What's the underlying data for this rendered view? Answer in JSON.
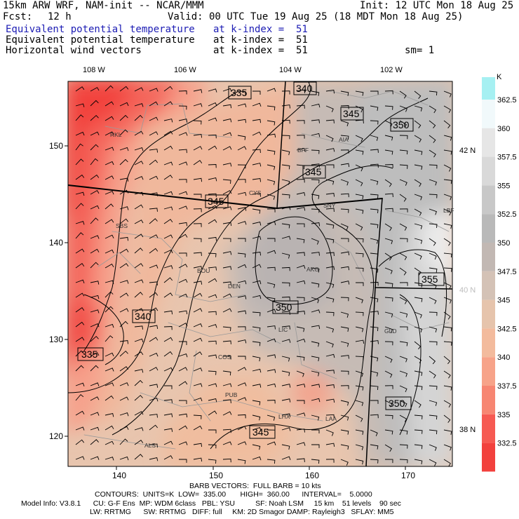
{
  "header": {
    "model": "15km ARW WRF, NAM-init -- NCAR/MMM",
    "init": "Init: 12 UTC Mon 18 Aug 25",
    "fcst_label": "Fcst:",
    "fcst_value": "12 h",
    "valid": "Valid: 00 UTC Tue 19 Aug 25 (18 MDT Mon 18 Aug 25)",
    "fields": [
      {
        "name": "Equivalent potential temperature",
        "level": "at k-index =  51",
        "highlight": true
      },
      {
        "name": "Equivalent potential temperature",
        "level": "at k-index =  51",
        "highlight": false
      },
      {
        "name": "Horizontal wind vectors",
        "level": "at k-index =  51",
        "highlight": false
      }
    ],
    "smoothing": "sm= 1"
  },
  "map": {
    "top_lon_labels": [
      "108 W",
      "106 W",
      "104 W",
      "102 W"
    ],
    "bottom_ticks": [
      "140",
      "150",
      "160",
      "170"
    ],
    "left_ticks": [
      "150",
      "140",
      "130",
      "120"
    ],
    "right_lat_labels": [
      "42 N",
      "40 N",
      "38 N"
    ],
    "stations": [
      "RKL",
      "BFF",
      "AIA",
      "CYS",
      "SNY",
      "SBS",
      "BOU",
      "DEN",
      "AKO",
      "LIC",
      "GLD",
      "COS",
      "PUB",
      "LHX",
      "LAA",
      "ALS",
      "LBF"
    ],
    "contour_labels": [
      "335",
      "340",
      "345",
      "350",
      "345",
      "345",
      "340",
      "335",
      "350",
      "355",
      "350",
      "345"
    ]
  },
  "colorbar": {
    "unit": "K",
    "labels": [
      "362.5",
      "360",
      "357.5",
      "355",
      "352.5",
      "350",
      "347.5",
      "345",
      "342.5",
      "340",
      "337.5",
      "335",
      "332.5"
    ],
    "colors": [
      "#f1f9fb",
      "#e6e6e6",
      "#d9d9d9",
      "#c8c8c8",
      "#b9b9b9",
      "#c2b8b3",
      "#d4c2b6",
      "#e6c4ac",
      "#f3bb9d",
      "#f7a389",
      "#f78672",
      "#f65a52",
      "#f2413d"
    ],
    "top_color": "#a6f0f2"
  },
  "footer": {
    "barb": "BARB VECTORS:  FULL BARB = 10 kts",
    "contours": "CONTOURS:  UNITS=K  LOW=  335.00       HIGH=  360.00      INTERVAL=    5.0000",
    "model_info": "Model Info: V3.8.1      CU: G-F Ens  MP: WDM 6class   PBL: YSU          SF: Noah LSM     15 km    51 levels    90 sec",
    "model_info2": "LW: RRTMG      SW: RRTMG   DIFF: full     KM: 2D Smagor DAMP: Rayleigh3   SFLAY: MM5"
  }
}
